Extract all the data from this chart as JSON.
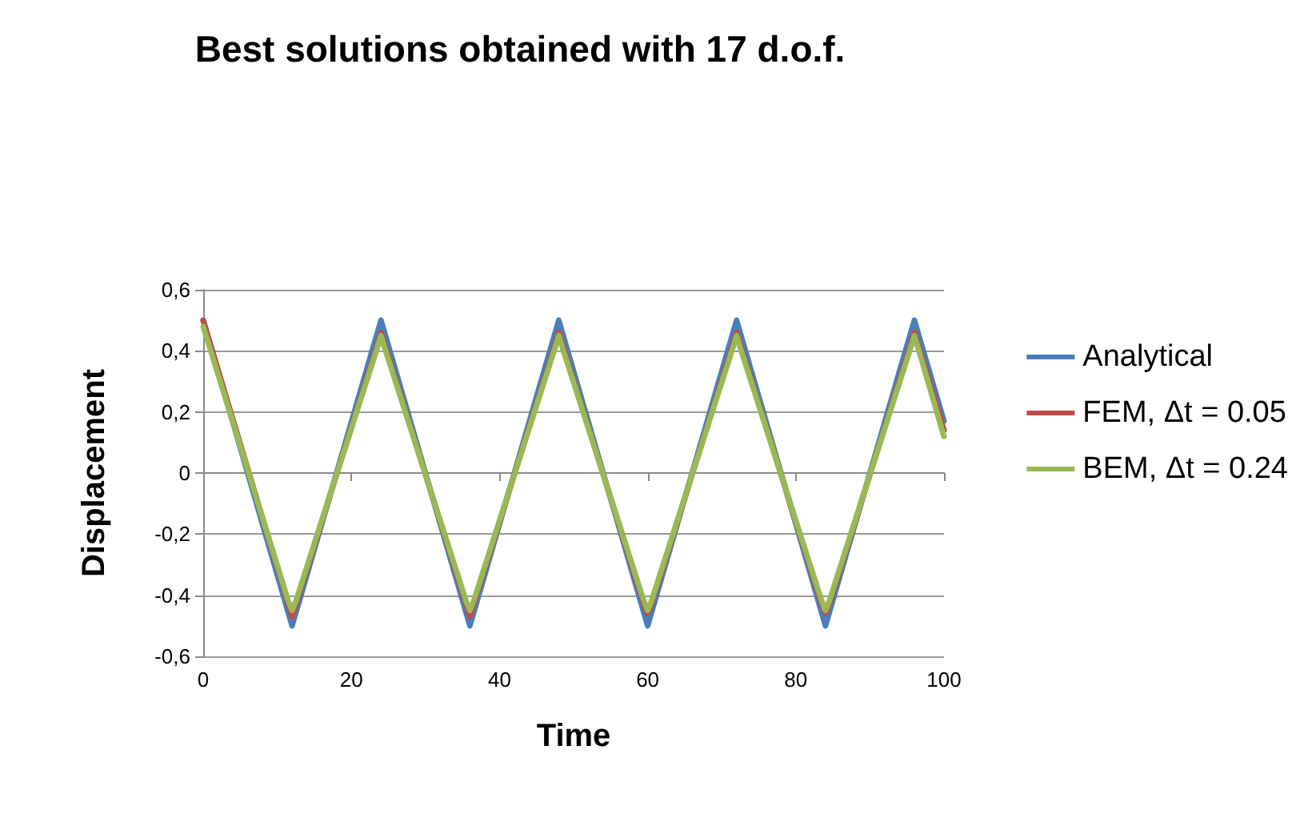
{
  "chart_data": {
    "type": "line",
    "title": "Best solutions obtained with 17 d.o.f.",
    "xlabel": "Time",
    "ylabel": "Displacement",
    "xlim": [
      0,
      100
    ],
    "xticks": [
      0,
      20,
      40,
      60,
      80,
      100
    ],
    "ylim": [
      -0.6,
      0.6
    ],
    "yticks": [
      {
        "value": -0.6,
        "label": "-0,6"
      },
      {
        "value": -0.4,
        "label": "-0,4"
      },
      {
        "value": -0.2,
        "label": "-0,2"
      },
      0,
      {
        "value": 0.2,
        "label": "0,2"
      },
      {
        "value": 0.4,
        "label": "0,4"
      },
      {
        "value": 0.6,
        "label": "0,6"
      }
    ],
    "grid": "y",
    "legend": "right",
    "series": [
      {
        "name": "Analytical",
        "color": "#4a7ebb",
        "x": [
          0,
          12,
          24,
          36,
          48,
          60,
          72,
          84,
          96,
          100
        ],
        "values": [
          0.5,
          -0.5,
          0.5,
          -0.5,
          0.5,
          -0.5,
          0.5,
          -0.5,
          0.5,
          0.17
        ]
      },
      {
        "name": "FEM, Δt = 0.05",
        "color": "#be4b48",
        "x": [
          0,
          11.5,
          12,
          12.5,
          23.5,
          24,
          24.5,
          35.5,
          36,
          36.5,
          47.5,
          48,
          48.5,
          59.5,
          60,
          60.5,
          71.5,
          72,
          72.5,
          83.5,
          84,
          84.5,
          95.5,
          96,
          96.5,
          100
        ],
        "values": [
          0.5,
          -0.43,
          -0.47,
          -0.43,
          0.42,
          0.46,
          0.42,
          -0.43,
          -0.47,
          -0.43,
          0.42,
          0.46,
          0.42,
          -0.43,
          -0.46,
          -0.43,
          0.42,
          0.46,
          0.42,
          -0.43,
          -0.46,
          -0.43,
          0.42,
          0.46,
          0.42,
          0.14
        ]
      },
      {
        "name": "BEM, Δt = 0.24",
        "color": "#98b954",
        "x": [
          0,
          11.5,
          12,
          12.5,
          23.5,
          24,
          24.5,
          35.5,
          36,
          36.5,
          47.5,
          48,
          48.5,
          59.5,
          60,
          60.5,
          71.5,
          72,
          72.5,
          83.5,
          84,
          84.5,
          95.5,
          96,
          96.5,
          100
        ],
        "values": [
          0.48,
          -0.42,
          -0.45,
          -0.42,
          0.41,
          0.45,
          0.41,
          -0.42,
          -0.45,
          -0.42,
          0.41,
          0.45,
          0.41,
          -0.42,
          -0.45,
          -0.42,
          0.41,
          0.45,
          0.41,
          -0.42,
          -0.45,
          -0.42,
          0.41,
          0.45,
          0.41,
          0.12
        ]
      }
    ]
  }
}
